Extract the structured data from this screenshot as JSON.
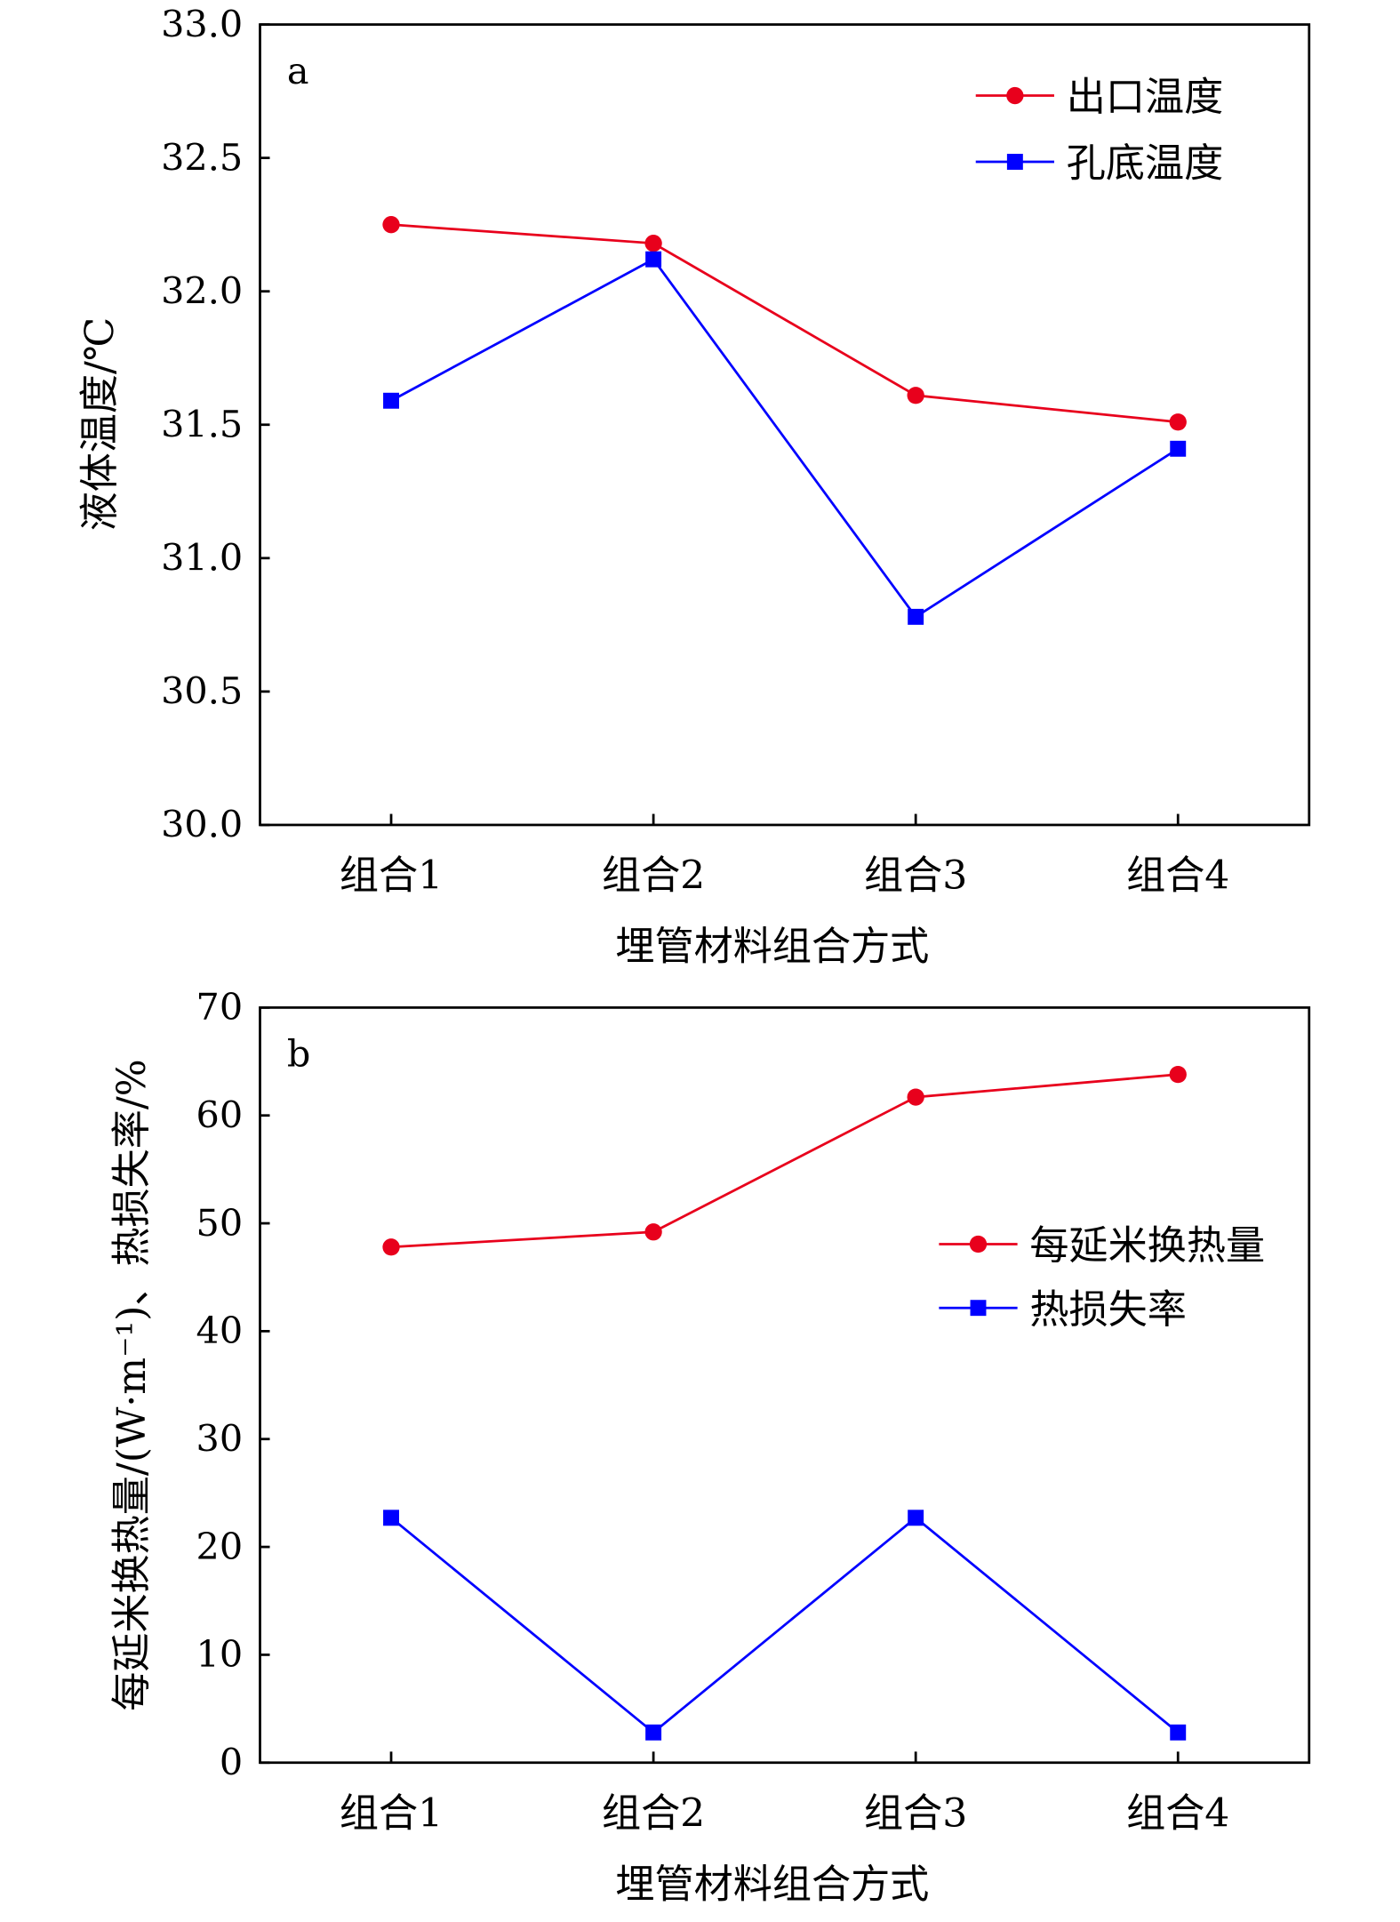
{
  "chart_data": [
    {
      "type": "line",
      "panel_label": "a",
      "categories": [
        "组合1",
        "组合2",
        "组合3",
        "组合4"
      ],
      "xlabel": "埋管材料组合方式",
      "ylabel": "液体温度/℃",
      "ylim": [
        30.0,
        33.0
      ],
      "yticks": [
        "30.0",
        "30.5",
        "31.0",
        "31.5",
        "32.0",
        "32.5",
        "33.0"
      ],
      "legend_position": "top-right",
      "series": [
        {
          "name": "出口温度",
          "color": "#e8001c",
          "marker": "circle",
          "values": [
            32.25,
            32.18,
            31.61,
            31.51
          ]
        },
        {
          "name": "孔底温度",
          "color": "#0000ff",
          "marker": "square",
          "values": [
            31.59,
            32.12,
            30.78,
            31.41
          ]
        }
      ]
    },
    {
      "type": "line",
      "panel_label": "b",
      "categories": [
        "组合1",
        "组合2",
        "组合3",
        "组合4"
      ],
      "xlabel": "埋管材料组合方式",
      "ylabel": "每延米换热量/(W·m⁻¹)、热损失率/%",
      "ylim": [
        0,
        70
      ],
      "yticks": [
        "0",
        "10",
        "20",
        "30",
        "40",
        "50",
        "60",
        "70"
      ],
      "legend_position": "center-right",
      "series": [
        {
          "name": "每延米换热量",
          "color": "#e8001c",
          "marker": "circle",
          "values": [
            47.8,
            49.2,
            61.7,
            63.8
          ]
        },
        {
          "name": "热损失率",
          "color": "#0000ff",
          "marker": "square",
          "values": [
            22.7,
            2.8,
            22.7,
            2.8
          ]
        }
      ]
    }
  ]
}
